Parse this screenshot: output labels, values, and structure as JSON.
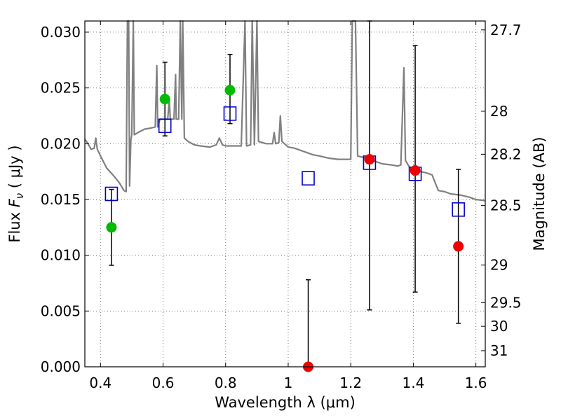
{
  "chart_data": {
    "type": "scatter",
    "xlabel": "Wavelength  λ (μm)",
    "ylabel": "Flux  F_ν  ( μJy )",
    "ylabel_parts": {
      "prefix": "Flux  ",
      "symbol": "F",
      "subscript": "ν",
      "suffix": "  ( μJy )"
    },
    "y2label": "Magnitude (AB)",
    "xlim": [
      0.35,
      1.63
    ],
    "ylim": [
      0.0,
      0.031
    ],
    "grid": true,
    "x_ticks": [
      0.4,
      0.6,
      0.8,
      1.0,
      1.2,
      1.4,
      1.6
    ],
    "x_tick_labels": [
      "0.4",
      "0.6",
      "0.8",
      "1",
      "1.2",
      "1.4",
      "1.6"
    ],
    "y_ticks": [
      0.0,
      0.005,
      0.01,
      0.015,
      0.02,
      0.025,
      0.03
    ],
    "y_tick_labels": [
      "0.000",
      "0.005",
      "0.010",
      "0.015",
      "0.020",
      "0.025",
      "0.030"
    ],
    "mag_ticks": [
      27.7,
      28,
      28.2,
      28.5,
      29,
      29.5,
      30,
      31
    ],
    "mag_tick_labels": [
      "27.7",
      "28",
      "28.2",
      "28.5",
      "29",
      "29.5",
      "30",
      "31"
    ],
    "colors": {
      "sed": "#808080",
      "green": "#00bb00",
      "red": "#ee0000",
      "blue": "#0000cc",
      "errorbar": "#000000",
      "grid": "#777777"
    },
    "series": [
      {
        "kind": "line",
        "points": [
          [
            0.35,
            0.0204
          ],
          [
            0.36,
            0.02
          ],
          [
            0.37,
            0.0195
          ],
          [
            0.38,
            0.0196
          ],
          [
            0.385,
            0.0205
          ],
          [
            0.39,
            0.0195
          ],
          [
            0.4,
            0.0189
          ],
          [
            0.42,
            0.0178
          ],
          [
            0.44,
            0.0172
          ],
          [
            0.46,
            0.0165
          ],
          [
            0.475,
            0.0158
          ],
          [
            0.482,
            0.0157
          ],
          [
            0.486,
            0.031
          ],
          [
            0.49,
            0.031
          ],
          [
            0.493,
            0.0162
          ],
          [
            0.497,
            0.0203
          ],
          [
            0.5,
            0.0208
          ],
          [
            0.505,
            0.031
          ],
          [
            0.508,
            0.0208
          ],
          [
            0.52,
            0.021
          ],
          [
            0.54,
            0.0213
          ],
          [
            0.56,
            0.0214
          ],
          [
            0.575,
            0.0215
          ],
          [
            0.58,
            0.027
          ],
          [
            0.583,
            0.0215
          ],
          [
            0.59,
            0.0222
          ],
          [
            0.6,
            0.0222
          ],
          [
            0.615,
            0.0222
          ],
          [
            0.62,
            0.024
          ],
          [
            0.623,
            0.0222
          ],
          [
            0.635,
            0.0222
          ],
          [
            0.64,
            0.0262
          ],
          [
            0.642,
            0.0222
          ],
          [
            0.65,
            0.0222
          ],
          [
            0.655,
            0.031
          ],
          [
            0.66,
            0.0222
          ],
          [
            0.663,
            0.031
          ],
          [
            0.668,
            0.0205
          ],
          [
            0.68,
            0.0202
          ],
          [
            0.7,
            0.0199
          ],
          [
            0.72,
            0.0198
          ],
          [
            0.75,
            0.0197
          ],
          [
            0.77,
            0.0199
          ],
          [
            0.78,
            0.0205
          ],
          [
            0.79,
            0.0199
          ],
          [
            0.8,
            0.0198
          ],
          [
            0.83,
            0.0198
          ],
          [
            0.85,
            0.0198
          ],
          [
            0.862,
            0.031
          ],
          [
            0.867,
            0.0198
          ],
          [
            0.88,
            0.0199
          ],
          [
            0.885,
            0.031
          ],
          [
            0.892,
            0.0199
          ],
          [
            0.9,
            0.031
          ],
          [
            0.905,
            0.0202
          ],
          [
            0.93,
            0.02
          ],
          [
            0.95,
            0.02
          ],
          [
            0.955,
            0.021
          ],
          [
            0.96,
            0.02
          ],
          [
            0.97,
            0.0201
          ],
          [
            0.975,
            0.0225
          ],
          [
            0.98,
            0.0202
          ],
          [
            1.0,
            0.0197
          ],
          [
            1.02,
            0.0196
          ],
          [
            1.05,
            0.0193
          ],
          [
            1.08,
            0.019
          ],
          [
            1.1,
            0.0189
          ],
          [
            1.13,
            0.0187
          ],
          [
            1.16,
            0.0186
          ],
          [
            1.19,
            0.0186
          ],
          [
            1.2,
            0.0186
          ],
          [
            1.205,
            0.031
          ],
          [
            1.215,
            0.031
          ],
          [
            1.222,
            0.0189
          ],
          [
            1.25,
            0.0187
          ],
          [
            1.28,
            0.0184
          ],
          [
            1.3,
            0.0182
          ],
          [
            1.33,
            0.0181
          ],
          [
            1.35,
            0.018
          ],
          [
            1.36,
            0.0181
          ],
          [
            1.37,
            0.0268
          ],
          [
            1.375,
            0.0185
          ],
          [
            1.39,
            0.0178
          ],
          [
            1.4,
            0.0177
          ],
          [
            1.42,
            0.0175
          ],
          [
            1.44,
            0.0174
          ],
          [
            1.46,
            0.0172
          ],
          [
            1.47,
            0.0165
          ],
          [
            1.48,
            0.0158
          ],
          [
            1.5,
            0.0157
          ],
          [
            1.52,
            0.0155
          ],
          [
            1.55,
            0.0154
          ],
          [
            1.58,
            0.0152
          ],
          [
            1.6,
            0.015
          ],
          [
            1.63,
            0.0149
          ]
        ]
      },
      {
        "kind": "markers",
        "marker": "circle",
        "color_key": "green",
        "points": [
          [
            0.435,
            0.0125
          ],
          [
            0.606,
            0.024
          ],
          [
            0.814,
            0.0248
          ]
        ]
      },
      {
        "kind": "markers",
        "marker": "circle",
        "color_key": "red",
        "points": [
          [
            1.064,
            0.0
          ],
          [
            1.26,
            0.0186
          ],
          [
            1.406,
            0.0176
          ],
          [
            1.544,
            0.0108
          ]
        ]
      },
      {
        "kind": "markers",
        "marker": "square",
        "color_key": "blue",
        "points": [
          [
            0.435,
            0.0155
          ],
          [
            0.606,
            0.0216
          ],
          [
            0.814,
            0.0227
          ],
          [
            1.064,
            0.0169
          ],
          [
            1.26,
            0.0183
          ],
          [
            1.406,
            0.0173
          ],
          [
            1.544,
            0.0141
          ]
        ]
      },
      {
        "kind": "errorbars",
        "color_key": "errorbar",
        "bars": [
          [
            0.435,
            0.0091,
            0.0159
          ],
          [
            0.606,
            0.0207,
            0.0273
          ],
          [
            0.814,
            0.0218,
            0.028
          ],
          [
            1.064,
            0.0,
            0.0078
          ],
          [
            1.26,
            0.0051,
            0.031
          ],
          [
            1.406,
            0.0067,
            0.0288
          ],
          [
            1.544,
            0.0039,
            0.0177
          ]
        ]
      }
    ]
  }
}
